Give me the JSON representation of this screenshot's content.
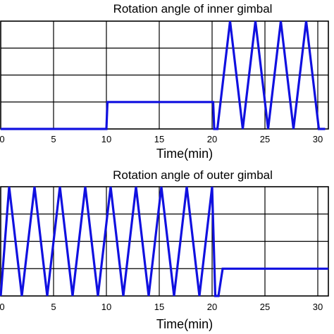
{
  "chart_data": [
    {
      "type": "line",
      "title": "Rotation angle of inner gimbal",
      "xlabel": "Time(min)",
      "ylabel": "",
      "xlim": [
        0,
        31
      ],
      "ylim": [
        0,
        4
      ],
      "x_ticks": [
        0,
        5,
        10,
        15,
        20,
        25,
        30
      ],
      "x_tick_labels": [
        "0",
        "5",
        "10",
        "15",
        "20",
        "25",
        "30"
      ],
      "grid": true,
      "line_color": "#1010e0",
      "series": [
        {
          "x": [
            0,
            10,
            10.1,
            20.1,
            20.2,
            20.5,
            21.7,
            22.9,
            24.1,
            25.3,
            26.5,
            27.7,
            28.9,
            30.1,
            30.7
          ],
          "y": [
            0,
            0,
            1,
            1,
            0,
            0,
            4,
            0,
            4,
            0,
            4,
            0,
            4,
            0,
            0
          ]
        }
      ]
    },
    {
      "type": "line",
      "title": "Rotation angle of outer gimbal",
      "xlabel": "Time(min)",
      "ylabel": "",
      "xlim": [
        0,
        31
      ],
      "ylim": [
        0,
        4
      ],
      "x_ticks": [
        0,
        5,
        10,
        15,
        20,
        25,
        30
      ],
      "x_tick_labels": [
        "0",
        "5",
        "10",
        "15",
        "20",
        "25",
        "30"
      ],
      "grid": true,
      "line_color": "#1010e0",
      "series": [
        {
          "x": [
            0,
            0.8,
            2.0,
            3.2,
            4.4,
            5.6,
            6.8,
            8.0,
            9.2,
            10.4,
            11.6,
            12.8,
            14.0,
            15.2,
            16.4,
            17.6,
            18.8,
            20.0,
            20.3,
            20.6,
            21.0,
            31
          ],
          "y": [
            0,
            4,
            0,
            4,
            0,
            4,
            0,
            4,
            0,
            4,
            0,
            4,
            0,
            4,
            0,
            4,
            0,
            4,
            0,
            0,
            1,
            1
          ]
        }
      ]
    }
  ]
}
